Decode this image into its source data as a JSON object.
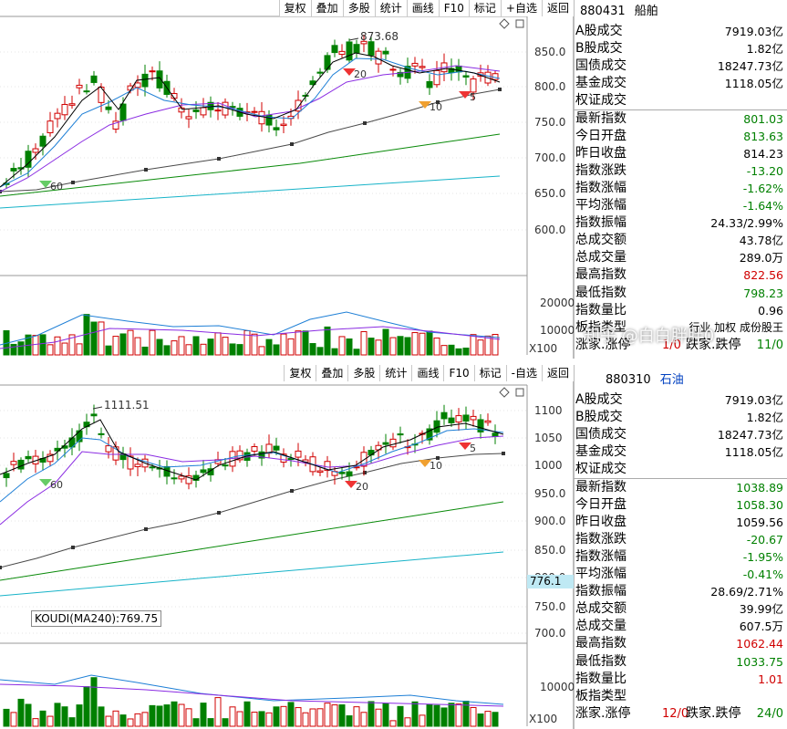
{
  "colors": {
    "up": "#d00000",
    "down": "#008000",
    "ma5": "#000000",
    "ma10": "#1e7fd6",
    "ma20": "#8a2be2",
    "ma60": "#4a4a4a",
    "ma120": "#0a8a0a",
    "ma250": "#17b3c8"
  },
  "toolbar": [
    "复权",
    "叠加",
    "多股",
    "统计",
    "画线",
    "F10",
    "标记",
    "+自选",
    "返回"
  ],
  "toolbar_bottom": [
    "复权",
    "叠加",
    "多股",
    "统计",
    "画线",
    "F10",
    "标记",
    "-自选",
    "返回"
  ],
  "top": {
    "code": "880431",
    "name": "船舶",
    "price_axis": [
      "850.0",
      "800.0",
      "750.0",
      "700.0",
      "650.0",
      "600.0"
    ],
    "vol_axis": [
      "20000",
      "10000",
      "X100"
    ],
    "high_label": "873.68",
    "markers": [
      "20",
      "10",
      "60",
      "5"
    ],
    "stats": [
      {
        "label": "A股成交",
        "value": "7919.03亿",
        "color": "blk"
      },
      {
        "label": "B股成交",
        "value": "1.82亿",
        "color": "blk"
      },
      {
        "label": "国债成交",
        "value": "18247.73亿",
        "color": "blk"
      },
      {
        "label": "基金成交",
        "value": "1118.05亿",
        "color": "blk"
      },
      {
        "label": "权证成交",
        "value": "",
        "color": "blk"
      },
      {
        "label": "最新指数",
        "value": "801.03",
        "color": "green"
      },
      {
        "label": "今日开盘",
        "value": "813.63",
        "color": "green"
      },
      {
        "label": "昨日收盘",
        "value": "814.23",
        "color": "blk"
      },
      {
        "label": "指数涨跌",
        "value": "-13.20",
        "color": "green"
      },
      {
        "label": "指数涨幅",
        "value": "-1.62%",
        "color": "green"
      },
      {
        "label": "平均涨幅",
        "value": "-1.64%",
        "color": "green"
      },
      {
        "label": "指数振幅",
        "value": "24.33/2.99%",
        "color": "blk"
      },
      {
        "label": "总成交额",
        "value": "43.78亿",
        "color": "blk"
      },
      {
        "label": "总成交量",
        "value": "289.0万",
        "color": "blk"
      },
      {
        "label": "最高指数",
        "value": "822.56",
        "color": "red"
      },
      {
        "label": "最低指数",
        "value": "798.23",
        "color": "green"
      },
      {
        "label": "指数量比",
        "value": "0.96",
        "color": "blk"
      }
    ],
    "type_label": "板指类型",
    "type_value": "行业 加权 成份股王",
    "updown_label": "涨家.涨停",
    "updown_value": "1/0",
    "downup_label": "跌家.跌停",
    "downup_value": "11/0"
  },
  "bottom": {
    "code": "880310",
    "name": "石油",
    "price_axis": [
      "1100",
      "1050",
      "1000",
      "950.0",
      "900.0",
      "850.0",
      "800.0",
      "750.0",
      "700.0"
    ],
    "price_tag": "776.1",
    "vol_axis": [
      "10000",
      "X100"
    ],
    "high_label": "1111.51",
    "koudi": "KOUDI(MA240):769.75",
    "markers": [
      "60",
      "20",
      "10",
      "5"
    ],
    "stats": [
      {
        "label": "A股成交",
        "value": "7919.03亿",
        "color": "blk"
      },
      {
        "label": "B股成交",
        "value": "1.82亿",
        "color": "blk"
      },
      {
        "label": "国债成交",
        "value": "18247.73亿",
        "color": "blk"
      },
      {
        "label": "基金成交",
        "value": "1118.05亿",
        "color": "blk"
      },
      {
        "label": "权证成交",
        "value": "",
        "color": "blk"
      },
      {
        "label": "最新指数",
        "value": "1038.89",
        "color": "green"
      },
      {
        "label": "今日开盘",
        "value": "1058.30",
        "color": "green"
      },
      {
        "label": "昨日收盘",
        "value": "1059.56",
        "color": "blk"
      },
      {
        "label": "指数涨跌",
        "value": "-20.67",
        "color": "green"
      },
      {
        "label": "指数涨幅",
        "value": "-1.95%",
        "color": "green"
      },
      {
        "label": "平均涨幅",
        "value": "-0.41%",
        "color": "green"
      },
      {
        "label": "指数振幅",
        "value": "28.69/2.71%",
        "color": "blk"
      },
      {
        "label": "总成交额",
        "value": "39.99亿",
        "color": "blk"
      },
      {
        "label": "总成交量",
        "value": "607.5万",
        "color": "blk"
      },
      {
        "label": "最高指数",
        "value": "1062.44",
        "color": "red"
      },
      {
        "label": "最低指数",
        "value": "1033.75",
        "color": "green"
      },
      {
        "label": "指数量比",
        "value": "1.01",
        "color": "red"
      }
    ],
    "type_label": "板指类型",
    "updown_label": "涨家.涨停",
    "updown_value": "12/0",
    "downup_label": "跌家.跌停",
    "downup_value": "24/0"
  },
  "watermark": "知乎 @白白胖胖0"
}
